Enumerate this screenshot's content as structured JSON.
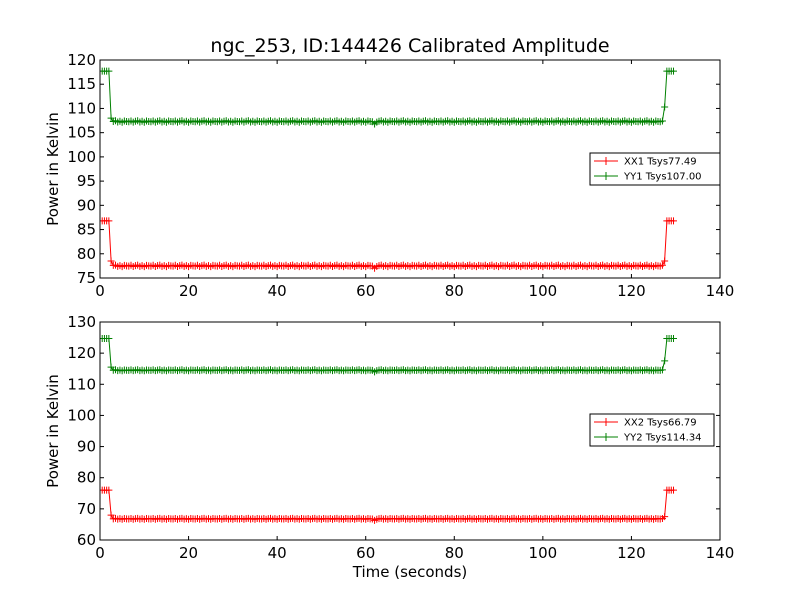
{
  "figure_title": "ngc_253, ID:144426 Calibrated Amplitude",
  "chart_data": [
    {
      "type": "line",
      "title": "ngc_253, ID:144426 Calibrated Amplitude",
      "xlabel": "",
      "ylabel": "Power in Kelvin",
      "xlim": [
        0,
        140
      ],
      "ylim": [
        75,
        120
      ],
      "xticks": [
        0,
        20,
        40,
        60,
        80,
        100,
        120,
        140
      ],
      "yticks": [
        75,
        80,
        85,
        90,
        95,
        100,
        105,
        110,
        115,
        120
      ],
      "legend_position": "right",
      "series": [
        {
          "name": "XX1 Tsys77.49",
          "color": "#ff0000",
          "marker": "+",
          "baseline": 77.5,
          "high": 86.8,
          "dip_at": 62,
          "dip_value": 77.0,
          "points": [
            [
              0.5,
              86.8
            ],
            [
              1.0,
              86.8
            ],
            [
              1.5,
              86.8
            ],
            [
              2.0,
              86.8
            ],
            [
              2.5,
              78.5
            ],
            [
              3.0,
              77.6
            ],
            [
              127.5,
              78.5
            ],
            [
              128.0,
              86.8
            ],
            [
              128.5,
              86.8
            ],
            [
              129.0,
              86.8
            ],
            [
              129.5,
              86.8
            ]
          ]
        },
        {
          "name": "YY1 Tsys107.00",
          "color": "#008000",
          "marker": "+",
          "baseline": 107.3,
          "high": 117.7,
          "dip_at": 62,
          "dip_value": 106.8,
          "points": [
            [
              0.5,
              117.7
            ],
            [
              1.0,
              117.7
            ],
            [
              1.5,
              117.7
            ],
            [
              2.0,
              117.7
            ],
            [
              2.5,
              108.0
            ],
            [
              3.0,
              107.3
            ],
            [
              127.5,
              110.3
            ],
            [
              128.0,
              117.7
            ],
            [
              128.5,
              117.7
            ],
            [
              129.0,
              117.7
            ],
            [
              129.5,
              117.7
            ]
          ]
        }
      ]
    },
    {
      "type": "line",
      "title": "",
      "xlabel": "Time (seconds)",
      "ylabel": "Power in Kelvin",
      "xlim": [
        0,
        140
      ],
      "ylim": [
        60,
        130
      ],
      "xticks": [
        0,
        20,
        40,
        60,
        80,
        100,
        120,
        140
      ],
      "yticks": [
        60,
        70,
        80,
        90,
        100,
        110,
        120,
        130
      ],
      "legend_position": "right",
      "series": [
        {
          "name": "XX2 Tsys66.79",
          "color": "#ff0000",
          "marker": "+",
          "baseline": 66.8,
          "high": 76.0,
          "dip_at": 62,
          "dip_value": 66.3,
          "points": [
            [
              0.5,
              76.0
            ],
            [
              1.0,
              76.0
            ],
            [
              1.5,
              76.0
            ],
            [
              2.0,
              76.0
            ],
            [
              2.5,
              68.0
            ],
            [
              3.0,
              66.8
            ],
            [
              127.5,
              67.5
            ],
            [
              128.0,
              76.0
            ],
            [
              128.5,
              76.0
            ],
            [
              129.0,
              76.0
            ],
            [
              129.5,
              76.0
            ]
          ]
        },
        {
          "name": "YY2 Tsys114.34",
          "color": "#008000",
          "marker": "+",
          "baseline": 114.5,
          "high": 124.7,
          "dip_at": 62,
          "dip_value": 114.0,
          "points": [
            [
              0.5,
              124.7
            ],
            [
              1.0,
              124.7
            ],
            [
              1.5,
              124.7
            ],
            [
              2.0,
              124.7
            ],
            [
              2.5,
              115.5
            ],
            [
              3.0,
              114.5
            ],
            [
              127.5,
              117.5
            ],
            [
              128.0,
              124.7
            ],
            [
              128.5,
              124.7
            ],
            [
              129.0,
              124.7
            ],
            [
              129.5,
              124.7
            ]
          ]
        }
      ]
    }
  ]
}
